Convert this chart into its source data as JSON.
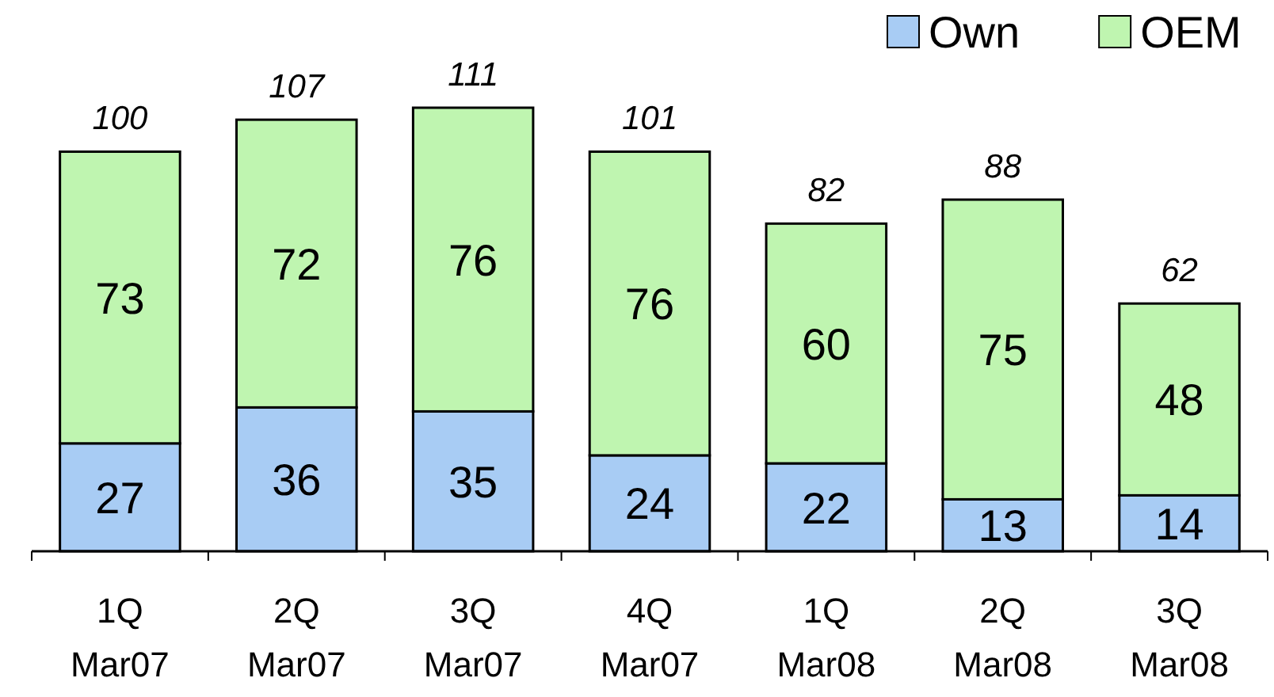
{
  "chart_data": {
    "type": "bar",
    "stacked": true,
    "categories": [
      "1Q Mar07",
      "2Q Mar07",
      "3Q Mar07",
      "4Q Mar07",
      "1Q Mar08",
      "2Q Mar08",
      "3Q Mar08"
    ],
    "series": [
      {
        "name": "Own",
        "color": "#a8ccf4",
        "values": [
          27,
          36,
          35,
          24,
          22,
          13,
          14
        ]
      },
      {
        "name": "OEM",
        "color": "#bff5b0",
        "values": [
          73,
          72,
          76,
          76,
          60,
          75,
          48
        ]
      }
    ],
    "totals": [
      "100",
      "107",
      "111",
      "101",
      "82",
      "88",
      "62"
    ],
    "data_labels": true,
    "legend": "top right"
  }
}
